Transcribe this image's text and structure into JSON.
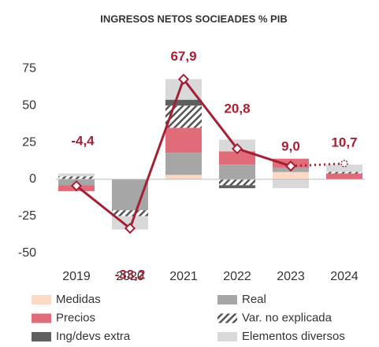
{
  "chart_data": {
    "type": "bar",
    "stacked": true,
    "title": "INGRESOS NETOS SOCIEADES % PIB",
    "categories": [
      "2019",
      "2020",
      "2021",
      "2022",
      "2023",
      "2024"
    ],
    "series": [
      {
        "name": "Medidas",
        "color": "#fcd9c4",
        "values": [
          0,
          0,
          3,
          0,
          5,
          0
        ]
      },
      {
        "name": "Real",
        "color": "#a6a6a6",
        "values": [
          -4,
          -21,
          15,
          10,
          3,
          0
        ]
      },
      {
        "name": "Precios",
        "color": "#e06c7a",
        "values": [
          -4,
          0,
          17,
          9,
          6,
          4
        ]
      },
      {
        "name": "Var. no explicada",
        "color": "#555555",
        "pattern": "hatch",
        "values": [
          2,
          -4,
          15,
          -4,
          0,
          1
        ]
      },
      {
        "name": "Ing/devs extra",
        "color": "#5f5f5f",
        "values": [
          0,
          0,
          4,
          -2,
          0,
          0
        ]
      },
      {
        "name": "Elementos diversos",
        "color": "#d9d9d9",
        "values": [
          2,
          -9,
          14,
          8,
          -6,
          5
        ]
      }
    ],
    "line": {
      "type": "line",
      "color": "#a32035",
      "values": [
        -4.4,
        -33.2,
        67.9,
        20.8,
        9.0,
        10.7
      ],
      "value_labels": [
        "-4,4",
        "-33,2",
        "67,9",
        "20,8",
        "9,0",
        "10,7"
      ],
      "dotted_after": 4
    },
    "ylim": [
      -55,
      80
    ],
    "yticks": [
      -50,
      -25,
      0,
      25,
      50,
      75
    ],
    "grid": false
  }
}
